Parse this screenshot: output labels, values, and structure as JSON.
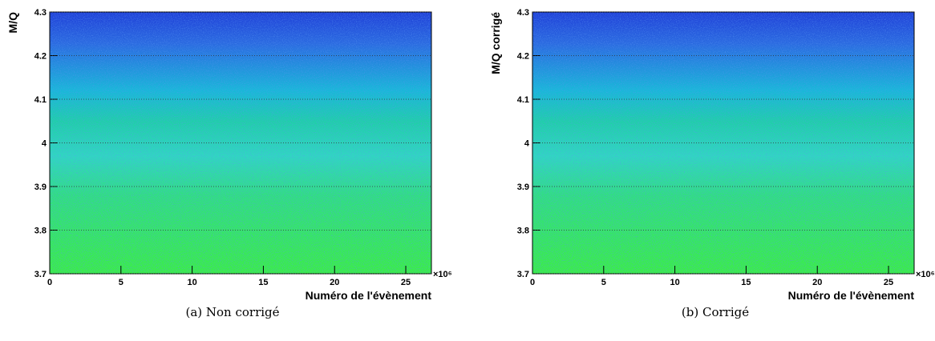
{
  "chart_data": [
    {
      "type": "heatmap",
      "caption": "(a) Non corrigé",
      "x_label": "Numéro de l'évènement",
      "y_label": "M/Q",
      "x_multiplier": "×10⁶",
      "xlim": [
        0,
        26.8
      ],
      "xticks": [
        0,
        5,
        10,
        15,
        20,
        25
      ],
      "ylim": [
        3.7,
        4.3
      ],
      "yticks": [
        3.7,
        3.8,
        3.9,
        4,
        4.1,
        4.2,
        4.3
      ],
      "grid": true
    },
    {
      "type": "heatmap",
      "caption": "(b) Corrigé",
      "x_label": "Numéro de l'évènement",
      "y_label": "M/Q corrigé",
      "x_multiplier": "×10⁶",
      "xlim": [
        0,
        26.8
      ],
      "xticks": [
        0,
        5,
        10,
        15,
        20,
        25
      ],
      "ylim": [
        3.7,
        4.3
      ],
      "yticks": [
        3.7,
        3.8,
        3.9,
        4,
        4.1,
        4.2,
        4.3
      ],
      "grid": true
    }
  ]
}
